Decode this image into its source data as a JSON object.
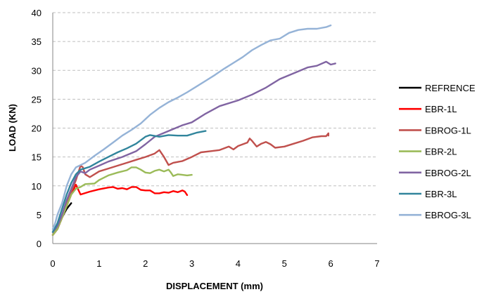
{
  "chart_data": {
    "type": "line",
    "title": "",
    "xlabel": "DISPLACEMENT (mm)",
    "ylabel": "LOAD (KN)",
    "xlim": [
      0,
      7
    ],
    "ylim": [
      0,
      40
    ],
    "xticks": [
      "0",
      "1",
      "2",
      "3",
      "4",
      "5",
      "6",
      "7"
    ],
    "yticks": [
      "0",
      "5",
      "10",
      "15",
      "20",
      "25",
      "30",
      "35",
      "40"
    ],
    "grid": "horizontal dashed",
    "legend_position": "right",
    "series": [
      {
        "name": "REFRENCE",
        "color": "#000000",
        "points": [
          [
            0,
            1.5
          ],
          [
            0.05,
            2
          ],
          [
            0.1,
            2.5
          ],
          [
            0.15,
            3.5
          ],
          [
            0.2,
            4.5
          ],
          [
            0.25,
            5.3
          ],
          [
            0.3,
            6
          ],
          [
            0.35,
            6.5
          ],
          [
            0.4,
            7
          ]
        ]
      },
      {
        "name": "EBR-1L",
        "color": "#ff0000",
        "points": [
          [
            0,
            1.5
          ],
          [
            0.1,
            2.5
          ],
          [
            0.2,
            4.5
          ],
          [
            0.3,
            6.5
          ],
          [
            0.4,
            8.5
          ],
          [
            0.5,
            10.2
          ],
          [
            0.6,
            8.5
          ],
          [
            0.8,
            9
          ],
          [
            1,
            9.4
          ],
          [
            1.2,
            9.7
          ],
          [
            1.3,
            9.8
          ],
          [
            1.4,
            9.5
          ],
          [
            1.5,
            9.6
          ],
          [
            1.6,
            9.4
          ],
          [
            1.7,
            9.8
          ],
          [
            1.8,
            9.8
          ],
          [
            1.9,
            9.3
          ],
          [
            2,
            9.2
          ],
          [
            2.1,
            9.2
          ],
          [
            2.2,
            8.7
          ],
          [
            2.3,
            8.7
          ],
          [
            2.4,
            8.9
          ],
          [
            2.5,
            8.8
          ],
          [
            2.6,
            9.1
          ],
          [
            2.7,
            8.9
          ],
          [
            2.8,
            9.2
          ],
          [
            2.85,
            9.0
          ],
          [
            2.9,
            8.4
          ]
        ]
      },
      {
        "name": "EBROG-1L",
        "color": "#c0504d",
        "points": [
          [
            0,
            1.5
          ],
          [
            0.1,
            3
          ],
          [
            0.2,
            5
          ],
          [
            0.3,
            7
          ],
          [
            0.4,
            9
          ],
          [
            0.5,
            11
          ],
          [
            0.6,
            13.5
          ],
          [
            0.65,
            13.2
          ],
          [
            0.7,
            12
          ],
          [
            0.8,
            11.5
          ],
          [
            1,
            12.5
          ],
          [
            1.2,
            13
          ],
          [
            1.4,
            13.5
          ],
          [
            1.6,
            14
          ],
          [
            1.8,
            14.5
          ],
          [
            2,
            15
          ],
          [
            2.2,
            15.6
          ],
          [
            2.3,
            16.2
          ],
          [
            2.4,
            15
          ],
          [
            2.5,
            13.6
          ],
          [
            2.6,
            14
          ],
          [
            2.8,
            14.3
          ],
          [
            3,
            15
          ],
          [
            3.2,
            15.8
          ],
          [
            3.4,
            16
          ],
          [
            3.6,
            16.2
          ],
          [
            3.8,
            16.8
          ],
          [
            3.9,
            16.3
          ],
          [
            4,
            16.9
          ],
          [
            4.2,
            17.5
          ],
          [
            4.25,
            18.2
          ],
          [
            4.3,
            17.8
          ],
          [
            4.4,
            16.8
          ],
          [
            4.5,
            17.3
          ],
          [
            4.6,
            17.6
          ],
          [
            4.7,
            17.2
          ],
          [
            4.8,
            16.6
          ],
          [
            5,
            16.8
          ],
          [
            5.2,
            17.3
          ],
          [
            5.4,
            17.8
          ],
          [
            5.6,
            18.4
          ],
          [
            5.8,
            18.6
          ],
          [
            5.9,
            18.6
          ],
          [
            5.95,
            19.1
          ],
          [
            5.95,
            18.7
          ]
        ]
      },
      {
        "name": "EBR-2L",
        "color": "#9bbb59",
        "points": [
          [
            0,
            1.5
          ],
          [
            0.1,
            2.5
          ],
          [
            0.2,
            4.5
          ],
          [
            0.3,
            6.5
          ],
          [
            0.4,
            8.5
          ],
          [
            0.5,
            9.5
          ],
          [
            0.6,
            9.8
          ],
          [
            0.7,
            10.3
          ],
          [
            0.9,
            10.4
          ],
          [
            1,
            11
          ],
          [
            1.2,
            11.8
          ],
          [
            1.4,
            12.3
          ],
          [
            1.6,
            12.7
          ],
          [
            1.7,
            13.2
          ],
          [
            1.8,
            13.2
          ],
          [
            1.9,
            12.8
          ],
          [
            2,
            12.3
          ],
          [
            2.1,
            12.2
          ],
          [
            2.2,
            12.6
          ],
          [
            2.3,
            12.8
          ],
          [
            2.4,
            12.5
          ],
          [
            2.5,
            12.8
          ],
          [
            2.55,
            12.3
          ],
          [
            2.6,
            11.7
          ],
          [
            2.7,
            12
          ],
          [
            2.8,
            11.9
          ],
          [
            2.9,
            11.8
          ],
          [
            3,
            11.9
          ]
        ]
      },
      {
        "name": "EBROG-2L",
        "color": "#8064a2",
        "points": [
          [
            0,
            2
          ],
          [
            0.1,
            3
          ],
          [
            0.2,
            5
          ],
          [
            0.3,
            7.5
          ],
          [
            0.4,
            9.5
          ],
          [
            0.5,
            11.5
          ],
          [
            0.6,
            12.5
          ],
          [
            0.7,
            12.2
          ],
          [
            0.8,
            12.8
          ],
          [
            1,
            13.5
          ],
          [
            1.2,
            14.2
          ],
          [
            1.5,
            15
          ],
          [
            1.8,
            16
          ],
          [
            2,
            17.2
          ],
          [
            2.2,
            18.5
          ],
          [
            2.5,
            19.5
          ],
          [
            2.8,
            20.5
          ],
          [
            3,
            21
          ],
          [
            3.3,
            22.5
          ],
          [
            3.6,
            23.8
          ],
          [
            4,
            24.8
          ],
          [
            4.3,
            25.8
          ],
          [
            4.6,
            27
          ],
          [
            4.9,
            28.5
          ],
          [
            5.2,
            29.5
          ],
          [
            5.5,
            30.5
          ],
          [
            5.7,
            30.8
          ],
          [
            5.9,
            31.5
          ],
          [
            6,
            31
          ],
          [
            6.1,
            31.2
          ]
        ]
      },
      {
        "name": "EBR-3L",
        "color": "#31859c",
        "points": [
          [
            0,
            2
          ],
          [
            0.1,
            3.5
          ],
          [
            0.2,
            6
          ],
          [
            0.3,
            8.5
          ],
          [
            0.4,
            10.5
          ],
          [
            0.5,
            12
          ],
          [
            0.6,
            12.8
          ],
          [
            0.8,
            13.3
          ],
          [
            1,
            14.2
          ],
          [
            1.2,
            15
          ],
          [
            1.4,
            15.8
          ],
          [
            1.6,
            16.5
          ],
          [
            1.8,
            17.3
          ],
          [
            2,
            18.5
          ],
          [
            2.1,
            18.8
          ],
          [
            2.3,
            18.5
          ],
          [
            2.5,
            18.8
          ],
          [
            2.7,
            18.7
          ],
          [
            2.9,
            18.7
          ],
          [
            3.1,
            19.2
          ],
          [
            3.3,
            19.5
          ]
        ]
      },
      {
        "name": "EBROG-3L",
        "color": "#95b3d7",
        "points": [
          [
            0,
            2.5
          ],
          [
            0.05,
            3.5
          ],
          [
            0.1,
            5
          ],
          [
            0.2,
            7
          ],
          [
            0.3,
            10
          ],
          [
            0.4,
            12
          ],
          [
            0.5,
            13.2
          ],
          [
            0.7,
            14
          ],
          [
            0.9,
            15.2
          ],
          [
            1.1,
            16.3
          ],
          [
            1.3,
            17.5
          ],
          [
            1.5,
            18.7
          ],
          [
            1.7,
            19.7
          ],
          [
            1.9,
            20.8
          ],
          [
            2.1,
            22.3
          ],
          [
            2.3,
            23.5
          ],
          [
            2.5,
            24.5
          ],
          [
            2.7,
            25.3
          ],
          [
            2.9,
            26.2
          ],
          [
            3.1,
            27.2
          ],
          [
            3.3,
            28.2
          ],
          [
            3.5,
            29.2
          ],
          [
            3.7,
            30.3
          ],
          [
            3.9,
            31.3
          ],
          [
            4.1,
            32.3
          ],
          [
            4.3,
            33.5
          ],
          [
            4.5,
            34.4
          ],
          [
            4.7,
            35.2
          ],
          [
            4.9,
            35.5
          ],
          [
            5.1,
            36.5
          ],
          [
            5.3,
            37
          ],
          [
            5.5,
            37.2
          ],
          [
            5.7,
            37.2
          ],
          [
            5.9,
            37.5
          ],
          [
            6,
            37.8
          ]
        ]
      }
    ]
  }
}
